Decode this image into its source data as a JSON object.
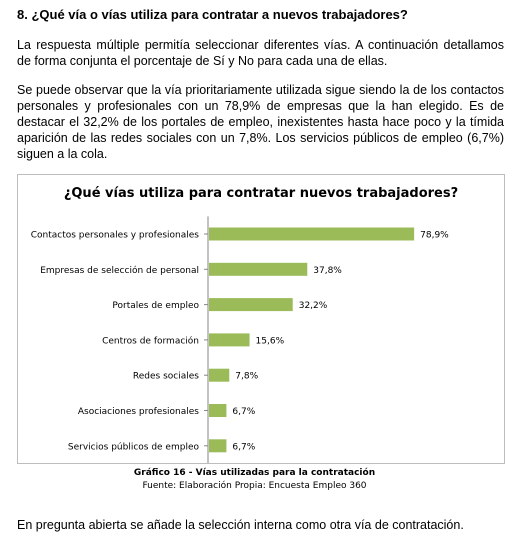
{
  "document": {
    "heading": "8. ¿Qué vía o vías utiliza para contratar a nuevos trabajadores?",
    "paragraph1": "La respuesta múltiple permitía seleccionar diferentes vías. A continuación detallamos de forma conjunta el porcentaje de Sí y No para cada una de ellas.",
    "paragraph2": "Se puede observar que la vía prioritariamente utilizada sigue siendo la de los contactos personales y profesionales con un 78,9% de empresas que la han elegido. Es de destacar el 32,2% de los portales de empleo, inexistentes hasta hace poco y la tímida aparición de las redes sociales con un 7,8%. Los servicios públicos de empleo (6,7%) siguen a la cola.",
    "caption": "Gráfico 16 - Vías utilizadas para la contratación",
    "source": "Fuente: Elaboración Propia: Encuesta Empleo 360",
    "paragraph3": "En pregunta abierta se añade la selección interna como otra vía de contratación."
  },
  "chart_data": {
    "type": "bar",
    "orientation": "horizontal",
    "title": "¿Qué vías utiliza para contratar nuevos trabajadores?",
    "categories": [
      "Contactos personales y profesionales",
      "Empresas de selección de personal",
      "Portales de empleo",
      "Centros de formación",
      "Redes sociales",
      "Asociaciones profesionales",
      "Servicios públicos de empleo"
    ],
    "values": [
      78.9,
      37.8,
      32.2,
      15.6,
      7.8,
      6.7,
      6.7
    ],
    "value_labels": [
      "78,9%",
      "37,8%",
      "32,2%",
      "15,6%",
      "7,8%",
      "6,7%",
      "6,7%"
    ],
    "xlim": [
      0,
      100
    ],
    "bar_color": "#9bbb59",
    "grid": false,
    "legend": "none"
  }
}
